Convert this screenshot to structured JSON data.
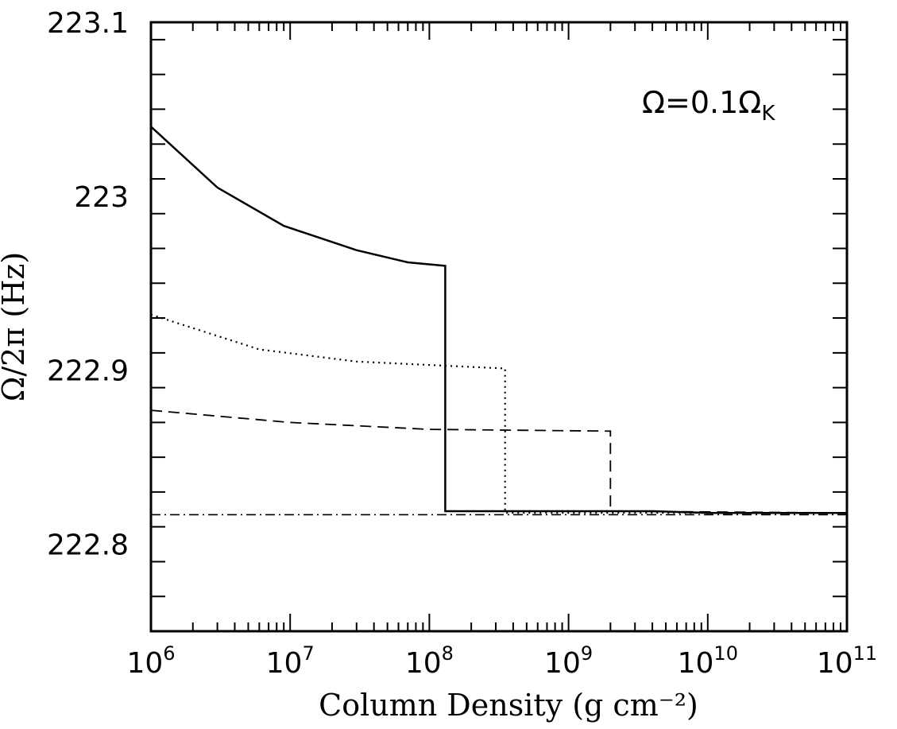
{
  "chart_data": {
    "type": "line",
    "title": "",
    "xlabel": "Column Density (g cm⁻²)",
    "ylabel": "Ω/2π (Hz)",
    "x_scale": "log",
    "xlim": [
      1000000,
      100000000000
    ],
    "ylim": [
      222.75,
      223.1
    ],
    "x_ticks": [
      {
        "value": 1000000,
        "base": "10",
        "exp": "6"
      },
      {
        "value": 10000000,
        "base": "10",
        "exp": "7"
      },
      {
        "value": 100000000,
        "base": "10",
        "exp": "8"
      },
      {
        "value": 1000000000,
        "base": "10",
        "exp": "9"
      },
      {
        "value": 10000000000,
        "base": "10",
        "exp": "10"
      },
      {
        "value": 100000000000,
        "base": "10",
        "exp": "11"
      }
    ],
    "y_ticks": [
      "222.8",
      "222.9",
      "223",
      "223.1"
    ],
    "y_minor_step": 0.02,
    "grid": false,
    "annotation": {
      "main": "Ω=0.1Ω",
      "sub": "K"
    },
    "series": [
      {
        "style": "solid",
        "points": [
          [
            1000000,
            223.04
          ],
          [
            3000000,
            223.005
          ],
          [
            9000000,
            222.983
          ],
          [
            30000000,
            222.969
          ],
          [
            70000000,
            222.962
          ],
          [
            130000000,
            222.96
          ],
          [
            130000000,
            222.819
          ],
          [
            4000000000,
            222.819
          ],
          [
            10000000000,
            222.818
          ],
          [
            100000000000,
            222.818
          ]
        ]
      },
      {
        "style": "dotted",
        "points": [
          [
            1000000,
            222.932
          ],
          [
            6000000,
            222.912
          ],
          [
            30000000,
            222.905
          ],
          [
            100000000,
            222.903
          ],
          [
            350000000,
            222.901
          ],
          [
            350000000,
            222.818
          ],
          [
            100000000000,
            222.818
          ]
        ]
      },
      {
        "style": "dashed",
        "points": [
          [
            1000000,
            222.877
          ],
          [
            10000000,
            222.87
          ],
          [
            100000000,
            222.866
          ],
          [
            2000000000,
            222.865
          ],
          [
            2000000000,
            222.819
          ],
          [
            100000000000,
            222.818
          ]
        ]
      },
      {
        "style": "dash-dot",
        "points": [
          [
            1000000,
            222.817
          ],
          [
            100000000000,
            222.817
          ]
        ]
      }
    ]
  }
}
